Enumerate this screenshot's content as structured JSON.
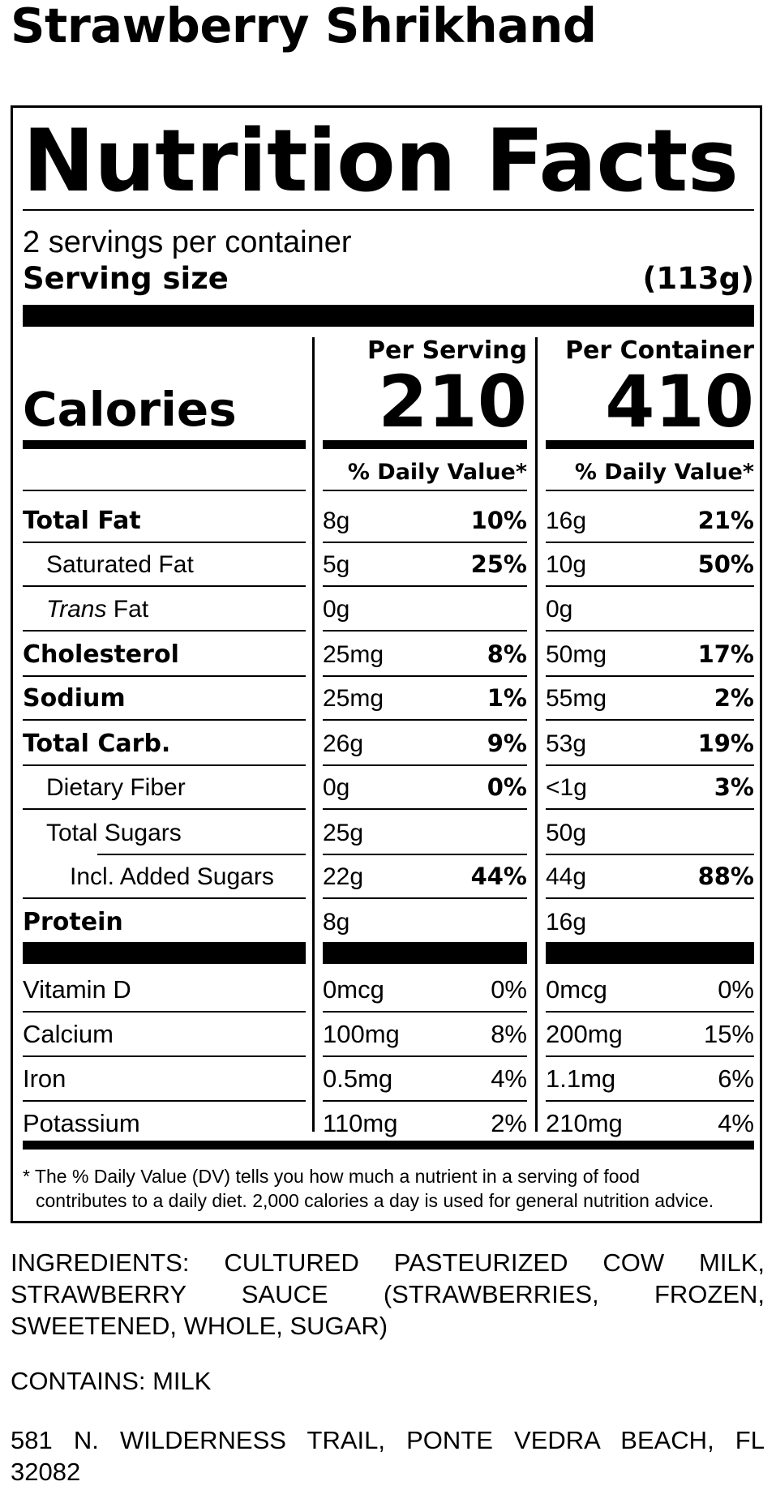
{
  "product_name": "Strawberry Shrikhand",
  "label": {
    "heading": "Nutrition Facts",
    "servings_per_container": "2 servings per container",
    "serving_size_label": "Serving size",
    "serving_size_value": "(113g)",
    "per_serving_header": "Per Serving",
    "per_container_header": "Per Container",
    "calories_label": "Calories",
    "calories_per_serving": "210",
    "calories_per_container": "410",
    "dv_header": "% Daily Value*",
    "nutrients": [
      {
        "name": "Total Fat",
        "serving_amount": "8g",
        "serving_dv": "10%",
        "container_amount": "16g",
        "container_dv": "21%"
      },
      {
        "name": "Saturated Fat",
        "serving_amount": "5g",
        "serving_dv": "25%",
        "container_amount": "10g",
        "container_dv": "50%"
      },
      {
        "name_italic": "Trans",
        "name_rest": " Fat",
        "serving_amount": "0g",
        "serving_dv": "",
        "container_amount": "0g",
        "container_dv": ""
      },
      {
        "name": "Cholesterol",
        "serving_amount": "25mg",
        "serving_dv": "8%",
        "container_amount": "50mg",
        "container_dv": "17%"
      },
      {
        "name": "Sodium",
        "serving_amount": "25mg",
        "serving_dv": "1%",
        "container_amount": "55mg",
        "container_dv": "2%"
      },
      {
        "name": "Total Carb.",
        "serving_amount": "26g",
        "serving_dv": "9%",
        "container_amount": "53g",
        "container_dv": "19%"
      },
      {
        "name": "Dietary Fiber",
        "serving_amount": "0g",
        "serving_dv": "0%",
        "container_amount": "<1g",
        "container_dv": "3%"
      },
      {
        "name": "Total Sugars",
        "serving_amount": "25g",
        "serving_dv": "",
        "container_amount": "50g",
        "container_dv": ""
      },
      {
        "name": "Incl. Added Sugars",
        "serving_amount": "22g",
        "serving_dv": "44%",
        "container_amount": "44g",
        "container_dv": "88%"
      },
      {
        "name": "Protein",
        "serving_amount": "8g",
        "serving_dv": "",
        "container_amount": "16g",
        "container_dv": ""
      }
    ],
    "vitamins": [
      {
        "name": "Vitamin D",
        "serving_amount": "0mcg",
        "serving_dv": "0%",
        "container_amount": "0mcg",
        "container_dv": "0%"
      },
      {
        "name": "Calcium",
        "serving_amount": "100mg",
        "serving_dv": "8%",
        "container_amount": "200mg",
        "container_dv": "15%"
      },
      {
        "name": "Iron",
        "serving_amount": "0.5mg",
        "serving_dv": "4%",
        "container_amount": "1.1mg",
        "container_dv": "6%"
      },
      {
        "name": "Potassium",
        "serving_amount": "110mg",
        "serving_dv": "2%",
        "container_amount": "210mg",
        "container_dv": "4%"
      }
    ],
    "footnote_line1": "* The % Daily Value (DV) tells you how much a nutrient in a serving of food",
    "footnote_line2": "contributes to a daily diet. 2,000 calories a day is used for general nutrition advice."
  },
  "ingredients": {
    "line1": "INGREDIENTS: CULTURED PASTEURIZED COW MILK,",
    "line2": "STRAWBERRY SAUCE (STRAWBERRIES, FROZEN,",
    "line3": "SWEETENED, WHOLE, SUGAR)"
  },
  "contains": "CONTAINS: MILK",
  "address": {
    "line1": "581 N. WILDERNESS TRAIL, PONTE VEDRA BEACH, FL",
    "line2": "32082"
  }
}
